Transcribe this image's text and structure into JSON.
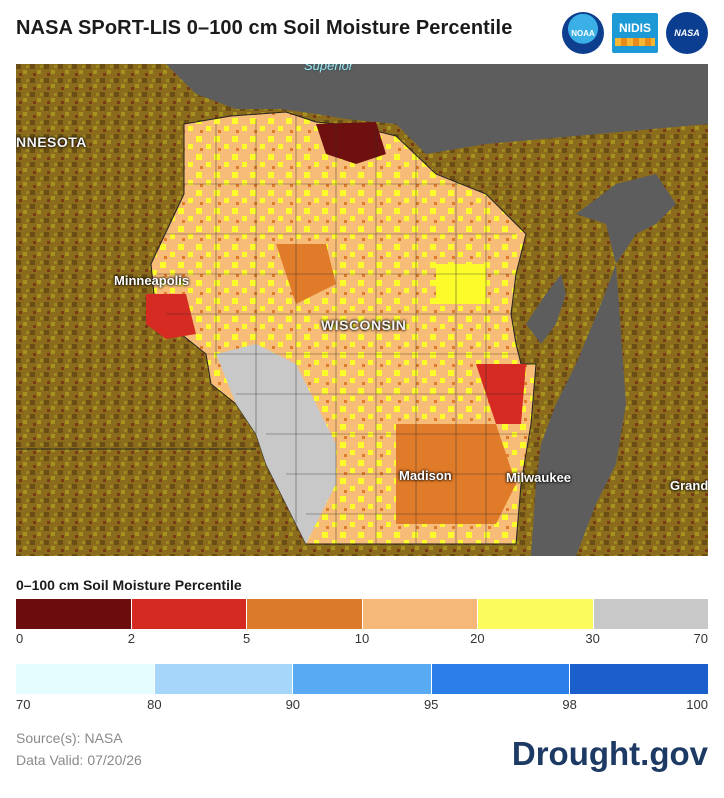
{
  "header": {
    "title": "NASA SPoRT-LIS 0–100 cm Soil Moisture Percentile",
    "logos": [
      {
        "name": "NOAA",
        "text": "NOAA"
      },
      {
        "name": "NIDIS",
        "text": "NIDIS"
      },
      {
        "name": "NASA",
        "text": "NASA"
      }
    ]
  },
  "map": {
    "labels": {
      "lake": "Superior",
      "state_mn": "NNESOTA",
      "state_wi": "WISCONSIN",
      "minneapolis": "Minneapolis",
      "madison": "Madison",
      "milwaukee": "Milwaukee",
      "grand": "Grand"
    },
    "colors": {
      "basemap_land": "#8a6c1c",
      "water": "#5d5d5d",
      "wi_dry_0_2": "#6e1010",
      "wi_dry_2_5": "#d62b22",
      "wi_dry_5_10": "#e07b29",
      "wi_dry_10_20": "#f7bc78",
      "wi_dry_20_30": "#fcfc2a",
      "wi_normal": "#c8c8c8"
    }
  },
  "legend": {
    "title": "0–100 cm Soil Moisture Percentile",
    "dry_colors": [
      "#6b0d0d",
      "#d42a22",
      "#dc7a2c",
      "#f6b879",
      "#fcfb5d",
      "#c8c8c8"
    ],
    "dry_ticks": [
      "0",
      "2",
      "5",
      "10",
      "20",
      "30",
      "70"
    ],
    "wet_colors": [
      "#e6fdff",
      "#a6d7fa",
      "#58aaf3",
      "#2c7ee8",
      "#1a5fcc"
    ],
    "wet_ticks": [
      "70",
      "80",
      "90",
      "95",
      "98",
      "100"
    ]
  },
  "footer": {
    "source": "Source(s): NASA",
    "valid": "Data Valid: 07/20/26",
    "brand": "Drought.gov"
  }
}
